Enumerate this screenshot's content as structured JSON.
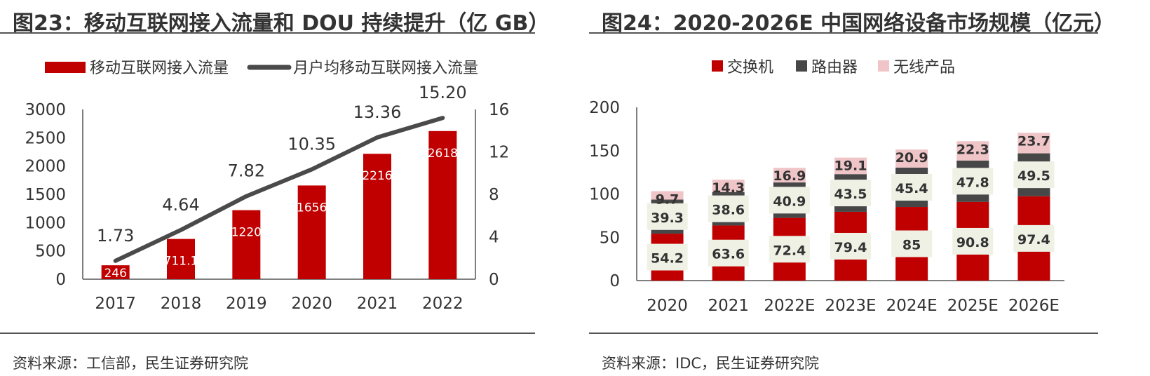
{
  "left": {
    "title": "图23：移动互联网接入流量和 DOU 持续提升（亿 GB）",
    "source": "资料来源：工信部，民生证券研究院",
    "chart_data": {
      "type": "bar+line",
      "categories": [
        "2017",
        "2018",
        "2019",
        "2020",
        "2021",
        "2022"
      ],
      "series": [
        {
          "name": "移动互联网接入流量",
          "type": "bar",
          "axis": "left",
          "values": [
            246,
            711.1,
            1220,
            1656,
            2216,
            2618
          ],
          "labels": [
            "246",
            "711.1",
            "1220",
            "1656",
            "2216",
            "2618"
          ],
          "color": "#C00000"
        },
        {
          "name": "月户均移动互联网接入流量",
          "type": "line",
          "axis": "right",
          "values": [
            1.73,
            4.64,
            7.82,
            10.35,
            13.36,
            15.2
          ],
          "labels": [
            "1.73",
            "4.64",
            "7.82",
            "10.35",
            "13.36",
            "15.20"
          ],
          "color": "#4A4A4A"
        }
      ],
      "y_left": {
        "min": 0,
        "max": 3000,
        "ticks": [
          "0",
          "500",
          "1000",
          "1500",
          "2000",
          "2500",
          "3000"
        ]
      },
      "y_right": {
        "min": 0,
        "max": 16,
        "ticks": [
          "0",
          "4",
          "8",
          "12",
          "16"
        ]
      },
      "legend": "top",
      "grid": false
    }
  },
  "right": {
    "title": "图24：2020-2026E 中国网络设备市场规模（亿元）",
    "source": "资料来源：IDC，民生证券研究院",
    "chart_data": {
      "type": "stacked-bar",
      "categories": [
        "2020",
        "2021",
        "2022E",
        "2023E",
        "2024E",
        "2025E",
        "2026E"
      ],
      "series": [
        {
          "name": "交换机",
          "values": [
            54.2,
            63.6,
            72.4,
            79.4,
            85,
            90.8,
            97.4
          ],
          "labels": [
            "54.2",
            "63.6",
            "72.4",
            "79.4",
            "85",
            "90.8",
            "97.4"
          ],
          "color": "#C00000"
        },
        {
          "name": "路由器",
          "values": [
            39.3,
            38.6,
            40.9,
            43.5,
            45.4,
            47.8,
            49.5
          ],
          "labels": [
            "39.3",
            "38.6",
            "40.9",
            "43.5",
            "45.4",
            "47.8",
            "49.5"
          ],
          "color": "#474747"
        },
        {
          "name": "无线产品",
          "values": [
            9.7,
            14.3,
            16.9,
            19.1,
            20.9,
            22.3,
            23.7
          ],
          "labels": [
            "9.7",
            "14.3",
            "16.9",
            "19.1",
            "20.9",
            "22.3",
            "23.7"
          ],
          "color": "#EFC5C8"
        }
      ],
      "y": {
        "min": 0,
        "max": 200,
        "ticks": [
          "0",
          "50",
          "100",
          "150",
          "200"
        ]
      },
      "label_box_color": "#EEF1E4",
      "legend": "top",
      "grid": false
    }
  }
}
